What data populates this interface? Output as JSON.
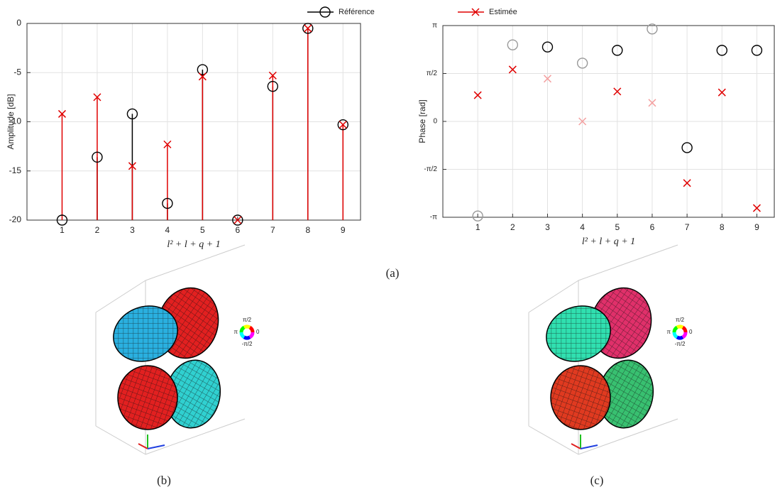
{
  "chart_data": [
    {
      "type": "stem",
      "ylabel": "Amplitude [dB]",
      "xlabel": "l² + l + q + 1",
      "x": [
        1,
        2,
        3,
        4,
        5,
        6,
        7,
        8,
        9
      ],
      "xlim": [
        0,
        9.5
      ],
      "xticks": [
        1,
        2,
        3,
        4,
        5,
        6,
        7,
        8,
        9
      ],
      "ylim": [
        -20,
        0
      ],
      "yticks": [
        0,
        -5,
        -10,
        -15,
        -20
      ],
      "grid": true,
      "series": [
        {
          "name": "Référence",
          "color": "#000000",
          "marker": "circle",
          "values": [
            -20,
            -13.6,
            -9.2,
            -18.3,
            -4.7,
            -20,
            -6.4,
            -0.5,
            -10.3
          ]
        },
        {
          "name": "Estimée",
          "color": "#e00000",
          "marker": "x",
          "values": [
            -9.2,
            -7.5,
            -14.5,
            -12.3,
            -5.4,
            -20,
            -5.3,
            -0.5,
            -10.3
          ]
        }
      ]
    },
    {
      "type": "scatter",
      "ylabel": "Phase [rad]",
      "xlabel": "l² + l + q + 1",
      "x": [
        1,
        2,
        3,
        4,
        5,
        6,
        7,
        8,
        9
      ],
      "xlim": [
        0,
        9.5
      ],
      "xticks": [
        1,
        2,
        3,
        4,
        5,
        6,
        7,
        8,
        9
      ],
      "ylim": [
        -3.1416,
        3.1416
      ],
      "yticks": [
        {
          "value": -3.1416,
          "label": "-π"
        },
        {
          "value": -1.5708,
          "label": "-π/2"
        },
        {
          "value": 0,
          "label": "0"
        },
        {
          "value": 1.5708,
          "label": "π/2"
        },
        {
          "value": 3.1416,
          "label": "π"
        }
      ],
      "grid": true,
      "series": [
        {
          "marker": "circle",
          "colors": [
            "#999999",
            "#999999",
            "#000000",
            "#999999",
            "#000000",
            "#999999",
            "#000000",
            "#000000",
            "#000000"
          ],
          "values": [
            -3.1,
            2.51,
            2.44,
            1.91,
            2.33,
            3.03,
            -0.86,
            2.33,
            2.33
          ]
        },
        {
          "marker": "x",
          "colors": [
            "#e00000",
            "#e00000",
            "#f4a0a0",
            "#f4a0a0",
            "#e00000",
            "#f4a0a0",
            "#e00000",
            "#e00000",
            "#e00000"
          ],
          "values": [
            0.86,
            1.7,
            1.4,
            0,
            0.98,
            0.61,
            -2.02,
            0.95,
            -2.84
          ]
        }
      ]
    }
  ],
  "caption_a": "(a)",
  "panels": [
    {
      "caption": "(b)",
      "wheel_labels": {
        "top": "π/2",
        "left": "π",
        "right": "0",
        "bottom": "-π/2"
      }
    },
    {
      "caption": "(c)",
      "wheel_labels": {
        "top": "π/2",
        "left": "π",
        "right": "0",
        "bottom": "-π/2"
      }
    }
  ]
}
